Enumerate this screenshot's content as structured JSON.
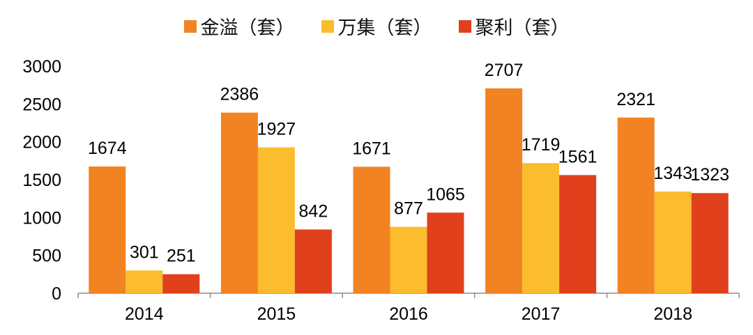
{
  "chart_data": {
    "type": "bar",
    "categories": [
      "2014",
      "2015",
      "2016",
      "2017",
      "2018"
    ],
    "series": [
      {
        "name": "金溢（套）",
        "values": [
          1674,
          2386,
          1671,
          2707,
          2321
        ],
        "color": "#F28322"
      },
      {
        "name": "万集（套）",
        "values": [
          301,
          1927,
          877,
          1719,
          1343
        ],
        "color": "#FBBC2E"
      },
      {
        "name": "聚利（套）",
        "values": [
          251,
          842,
          1065,
          1561,
          1323
        ],
        "color": "#E0401C"
      }
    ],
    "yticks": [
      "0",
      "500",
      "1000",
      "1500",
      "2000",
      "2500",
      "3000"
    ],
    "ylim": [
      0,
      3000
    ],
    "grid": false,
    "legend_position": "top-center"
  }
}
